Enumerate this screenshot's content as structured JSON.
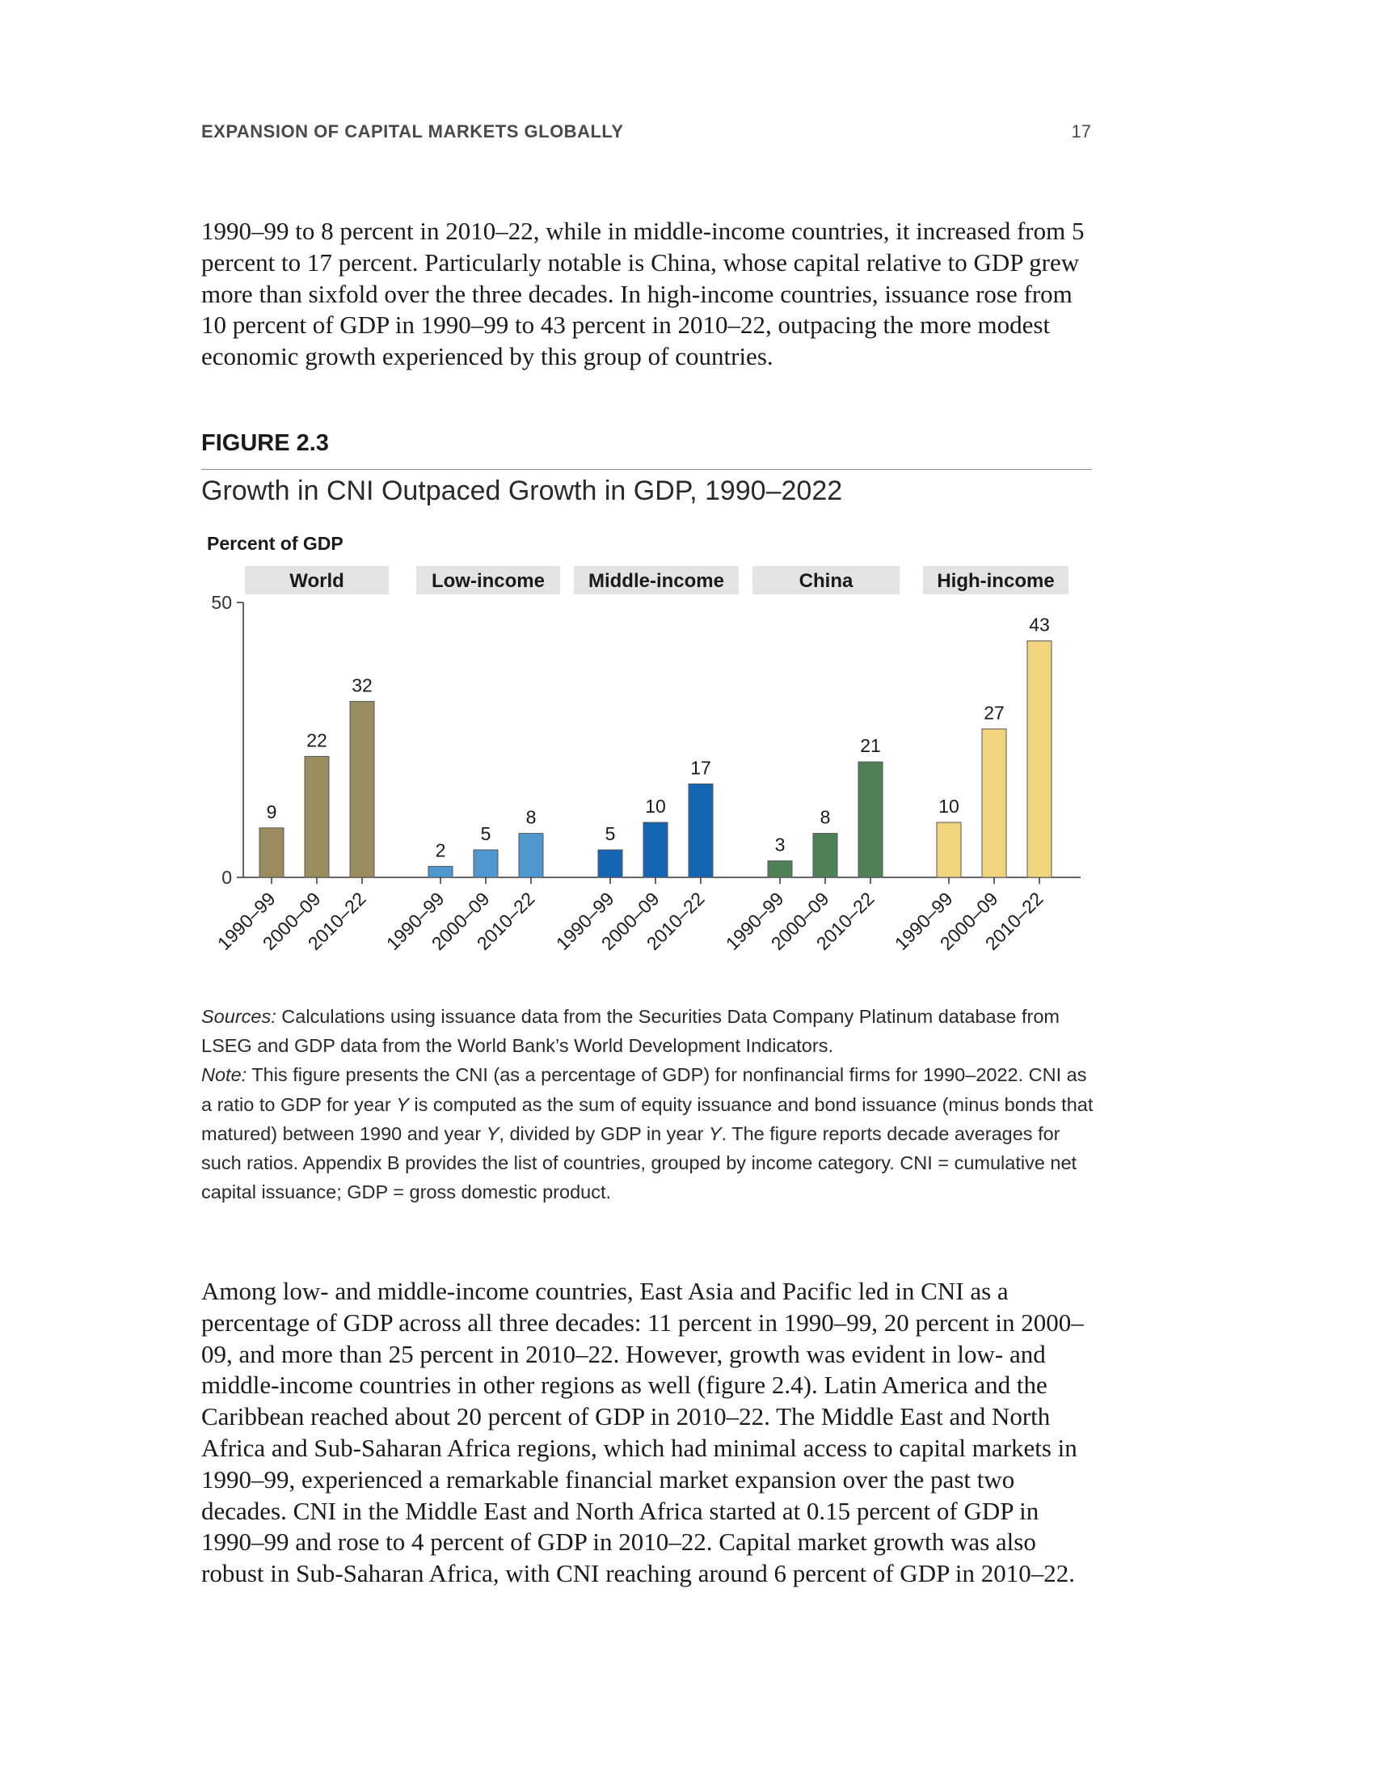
{
  "header": {
    "running_head": "EXPANSION OF CAPITAL MARKETS GLOBALLY",
    "page_number": "17"
  },
  "para1": "1990–99 to 8 percent in 2010–22, while in middle-income countries, it increased from 5 percent to 17 percent. Particularly notable is China, whose capital relative to GDP grew more than sixfold over the three decades. In high-income countries, issuance rose from 10 percent of GDP in 1990–99 to 43 percent in 2010–22, outpacing the more modest economic growth experienced by this group of countries.",
  "figure": {
    "label": "FIGURE 2.3",
    "title": "Growth in CNI Outpaced Growth in GDP, 1990–2022"
  },
  "chart_data": {
    "type": "bar",
    "ylabel": "Percent of GDP",
    "ylim": [
      0,
      50
    ],
    "yticks": [
      0,
      50
    ],
    "grid": false,
    "categories": [
      "1990–99",
      "2000–09",
      "2010–22"
    ],
    "panels": [
      {
        "name": "World",
        "values": [
          9,
          22,
          32
        ],
        "color": "#9a8c5f"
      },
      {
        "name": "Low-income",
        "values": [
          2,
          5,
          8
        ],
        "color": "#4f97cf"
      },
      {
        "name": "Middle-income",
        "values": [
          5,
          10,
          17
        ],
        "color": "#1565b5"
      },
      {
        "name": "China",
        "values": [
          3,
          8,
          21
        ],
        "color": "#4f8157"
      },
      {
        "name": "High-income",
        "values": [
          10,
          27,
          43
        ],
        "color": "#f2d47e"
      }
    ],
    "panel_header_color": "#e3e3e3"
  },
  "notes": {
    "sources_label": "Sources:",
    "sources_text": " Calculations using issuance data from the Securities Data Company Platinum database from LSEG and GDP data from the World Bank’s World Development Indicators.",
    "note_label": "Note:",
    "note_t1": " This figure presents the CNI (as a percentage of GDP) for nonfinancial firms for 1990–2022. CNI as a ratio to GDP for year ",
    "note_y1": "Y",
    "note_t2": " is computed as the sum of equity issuance and bond issuance (minus bonds that matured) between 1990 and year ",
    "note_y2": "Y",
    "note_t3": ", divided by GDP in year ",
    "note_y3": "Y",
    "note_t4": ". The figure reports decade averages for such ratios. Appendix B provides the list of countries, grouped by income category. CNI = cumulative net capital issuance; GDP = gross domestic product."
  },
  "para2": "Among low- and middle-income countries, East Asia and Pacific led in CNI as a percentage of GDP across all three decades: 11 percent in 1990–99, 20 percent in 2000–09, and more than 25 percent in 2010–22. However, growth was evident in low- and middle-income countries in other regions as well (figure 2.4). Latin America and the Caribbean reached about 20 percent of GDP in 2010–22. The Middle East and North Africa and Sub-Saharan Africa regions, which had minimal access to capital markets in 1990–99, experienced a remarkable financial market expansion over the past two decades. CNI in the Middle East and North Africa started at 0.15 percent of GDP in 1990–99 and rose to 4 percent of GDP in 2010–22. Capital market growth was also robust in Sub-Saharan Africa, with CNI reaching around 6 percent of GDP in 2010–22."
}
